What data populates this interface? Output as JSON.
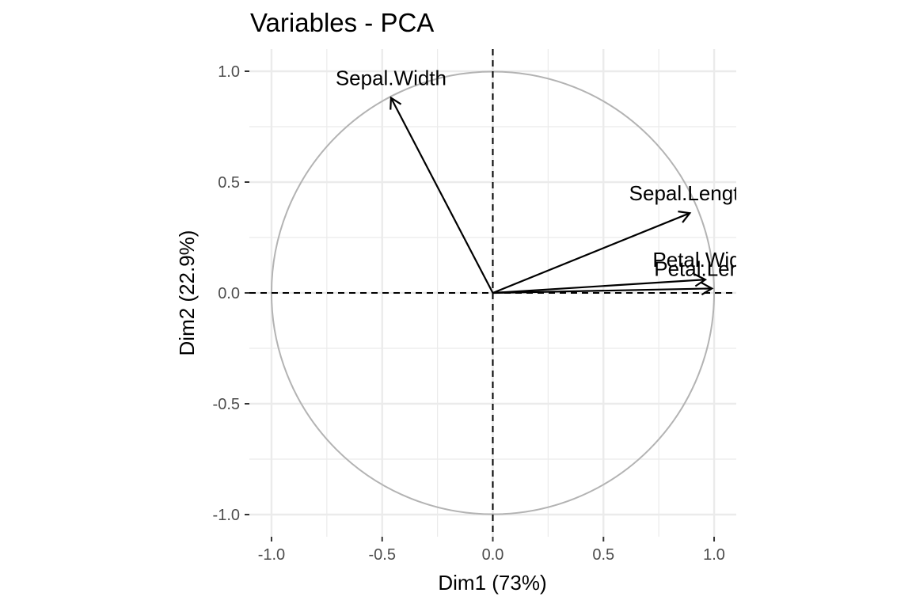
{
  "chart_data": {
    "type": "scatter",
    "title": "Variables - PCA",
    "xlabel": "Dim1 (73%)",
    "ylabel": "Dim2 (22.9%)",
    "xlim": [
      -1.1,
      1.1
    ],
    "ylim": [
      -1.1,
      1.1
    ],
    "x_ticks": [
      -1.0,
      -0.5,
      0.0,
      0.5,
      1.0
    ],
    "y_ticks": [
      -1.0,
      -0.5,
      0.0,
      0.5,
      1.0
    ],
    "x_tick_labels": [
      "-1.0",
      "-0.5",
      "0.0",
      "0.5",
      "1.0"
    ],
    "y_tick_labels": [
      "-1.0",
      "-0.5",
      "0.0",
      "0.5",
      "1.0"
    ],
    "grid": true,
    "correlation_circle": true,
    "reference_lines": [
      0,
      0
    ],
    "variables": [
      {
        "name": "Sepal.Length",
        "x": 0.89,
        "y": 0.36
      },
      {
        "name": "Sepal.Width",
        "x": -0.46,
        "y": 0.88
      },
      {
        "name": "Petal.Length",
        "x": 0.99,
        "y": 0.02
      },
      {
        "name": "Petal.Width",
        "x": 0.96,
        "y": 0.06
      }
    ],
    "colors": {
      "arrow": "#000000",
      "circle": "#b3b3b3",
      "grid": "#ebebeb",
      "tick_text": "#4d4d4d"
    }
  }
}
